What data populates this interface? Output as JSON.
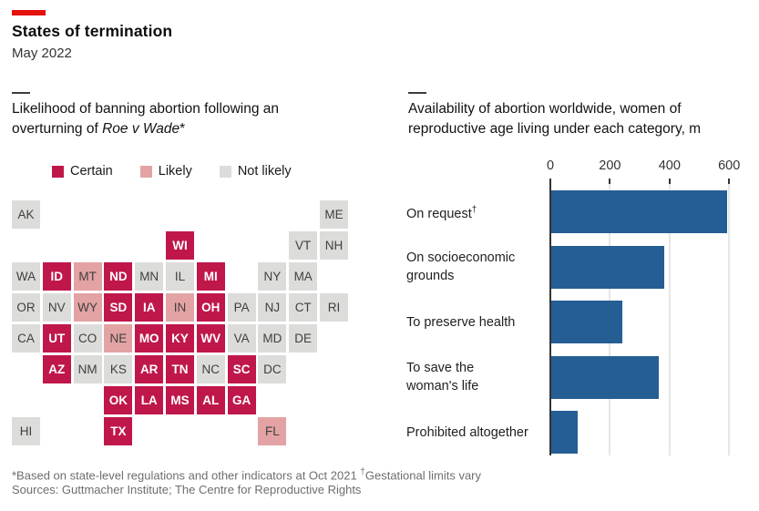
{
  "header": {
    "title": "States of termination",
    "subtitle": "May 2022"
  },
  "left_panel": {
    "title_line1": "Likelihood of banning abortion following an",
    "title_line2_prefix": "overturning of ",
    "title_line2_italic": "Roe v Wade",
    "title_line2_suffix": "*"
  },
  "right_panel": {
    "title_line1": "Availability of abortion worldwide, women of",
    "title_line2": "reproductive age living under each category, m"
  },
  "chart_data": [
    {
      "type": "heatmap",
      "subtype": "us-state-tile-grid-map",
      "title": "Likelihood of banning abortion following an overturning of Roe v Wade*",
      "legend": [
        {
          "label": "Certain",
          "value": "certain",
          "color": "#c0174b"
        },
        {
          "label": "Likely",
          "value": "likely",
          "color": "#e3a3a4"
        },
        {
          "label": "Not likely",
          "value": "not_likely",
          "color": "#dcdcda"
        }
      ],
      "grid_columns": 11,
      "grid_rows": 8,
      "states": [
        {
          "abbr": "AK",
          "col": 0,
          "row": 0,
          "status": "not_likely"
        },
        {
          "abbr": "ME",
          "col": 10,
          "row": 0,
          "status": "not_likely"
        },
        {
          "abbr": "WI",
          "col": 5,
          "row": 1,
          "status": "certain"
        },
        {
          "abbr": "VT",
          "col": 9,
          "row": 1,
          "status": "not_likely"
        },
        {
          "abbr": "NH",
          "col": 10,
          "row": 1,
          "status": "not_likely"
        },
        {
          "abbr": "WA",
          "col": 0,
          "row": 2,
          "status": "not_likely"
        },
        {
          "abbr": "ID",
          "col": 1,
          "row": 2,
          "status": "certain"
        },
        {
          "abbr": "MT",
          "col": 2,
          "row": 2,
          "status": "likely"
        },
        {
          "abbr": "ND",
          "col": 3,
          "row": 2,
          "status": "certain"
        },
        {
          "abbr": "MN",
          "col": 4,
          "row": 2,
          "status": "not_likely"
        },
        {
          "abbr": "IL",
          "col": 5,
          "row": 2,
          "status": "not_likely"
        },
        {
          "abbr": "MI",
          "col": 6,
          "row": 2,
          "status": "certain"
        },
        {
          "abbr": "NY",
          "col": 8,
          "row": 2,
          "status": "not_likely"
        },
        {
          "abbr": "MA",
          "col": 9,
          "row": 2,
          "status": "not_likely"
        },
        {
          "abbr": "OR",
          "col": 0,
          "row": 3,
          "status": "not_likely"
        },
        {
          "abbr": "NV",
          "col": 1,
          "row": 3,
          "status": "not_likely"
        },
        {
          "abbr": "WY",
          "col": 2,
          "row": 3,
          "status": "likely"
        },
        {
          "abbr": "SD",
          "col": 3,
          "row": 3,
          "status": "certain"
        },
        {
          "abbr": "IA",
          "col": 4,
          "row": 3,
          "status": "certain"
        },
        {
          "abbr": "IN",
          "col": 5,
          "row": 3,
          "status": "likely"
        },
        {
          "abbr": "OH",
          "col": 6,
          "row": 3,
          "status": "certain"
        },
        {
          "abbr": "PA",
          "col": 7,
          "row": 3,
          "status": "not_likely"
        },
        {
          "abbr": "NJ",
          "col": 8,
          "row": 3,
          "status": "not_likely"
        },
        {
          "abbr": "CT",
          "col": 9,
          "row": 3,
          "status": "not_likely"
        },
        {
          "abbr": "RI",
          "col": 10,
          "row": 3,
          "status": "not_likely"
        },
        {
          "abbr": "CA",
          "col": 0,
          "row": 4,
          "status": "not_likely"
        },
        {
          "abbr": "UT",
          "col": 1,
          "row": 4,
          "status": "certain"
        },
        {
          "abbr": "CO",
          "col": 2,
          "row": 4,
          "status": "not_likely"
        },
        {
          "abbr": "NE",
          "col": 3,
          "row": 4,
          "status": "likely"
        },
        {
          "abbr": "MO",
          "col": 4,
          "row": 4,
          "status": "certain"
        },
        {
          "abbr": "KY",
          "col": 5,
          "row": 4,
          "status": "certain"
        },
        {
          "abbr": "WV",
          "col": 6,
          "row": 4,
          "status": "certain"
        },
        {
          "abbr": "VA",
          "col": 7,
          "row": 4,
          "status": "not_likely"
        },
        {
          "abbr": "MD",
          "col": 8,
          "row": 4,
          "status": "not_likely"
        },
        {
          "abbr": "DE",
          "col": 9,
          "row": 4,
          "status": "not_likely"
        },
        {
          "abbr": "AZ",
          "col": 1,
          "row": 5,
          "status": "certain"
        },
        {
          "abbr": "NM",
          "col": 2,
          "row": 5,
          "status": "not_likely"
        },
        {
          "abbr": "KS",
          "col": 3,
          "row": 5,
          "status": "not_likely"
        },
        {
          "abbr": "AR",
          "col": 4,
          "row": 5,
          "status": "certain"
        },
        {
          "abbr": "TN",
          "col": 5,
          "row": 5,
          "status": "certain"
        },
        {
          "abbr": "NC",
          "col": 6,
          "row": 5,
          "status": "not_likely"
        },
        {
          "abbr": "SC",
          "col": 7,
          "row": 5,
          "status": "certain"
        },
        {
          "abbr": "DC",
          "col": 8,
          "row": 5,
          "status": "not_likely"
        },
        {
          "abbr": "OK",
          "col": 3,
          "row": 6,
          "status": "certain"
        },
        {
          "abbr": "LA",
          "col": 4,
          "row": 6,
          "status": "certain"
        },
        {
          "abbr": "MS",
          "col": 5,
          "row": 6,
          "status": "certain"
        },
        {
          "abbr": "AL",
          "col": 6,
          "row": 6,
          "status": "certain"
        },
        {
          "abbr": "GA",
          "col": 7,
          "row": 6,
          "status": "certain"
        },
        {
          "abbr": "HI",
          "col": 0,
          "row": 7,
          "status": "not_likely"
        },
        {
          "abbr": "TX",
          "col": 3,
          "row": 7,
          "status": "certain"
        },
        {
          "abbr": "FL",
          "col": 8,
          "row": 7,
          "status": "likely"
        }
      ]
    },
    {
      "type": "bar",
      "orientation": "horizontal",
      "title": "Availability of abortion worldwide, women of reproductive age living under each category, m",
      "categories": [
        "On request†",
        "On socioeconomic grounds",
        "To preserve health",
        "To save the woman's life",
        "Prohibited altogether"
      ],
      "category_lines": [
        [
          "On request"
        ],
        [
          "On socioeconomic",
          "grounds"
        ],
        [
          "To preserve health"
        ],
        [
          "To save the",
          "woman's life"
        ],
        [
          "Prohibited altogether"
        ]
      ],
      "category_sup": [
        "†",
        "",
        "",
        "",
        ""
      ],
      "values": [
        590,
        380,
        240,
        360,
        90
      ],
      "xlim": [
        0,
        600
      ],
      "xticks": [
        "0",
        "200",
        "400",
        "600"
      ],
      "bar_color": "#255e94",
      "grid": true,
      "legend_position": "none"
    }
  ],
  "footer": {
    "note_pre": "*Based on state-level regulations and other indicators at Oct 2021 ",
    "note_sup": "†",
    "note_post": "Gestational limits vary",
    "sources": "Sources: Guttmacher Institute; The Centre for Reproductive Rights"
  },
  "colors": {
    "brand_red": "#e3120b",
    "certain": "#c0174b",
    "likely": "#e3a3a4",
    "not_likely": "#dcdcda",
    "bar_blue": "#255e94"
  }
}
